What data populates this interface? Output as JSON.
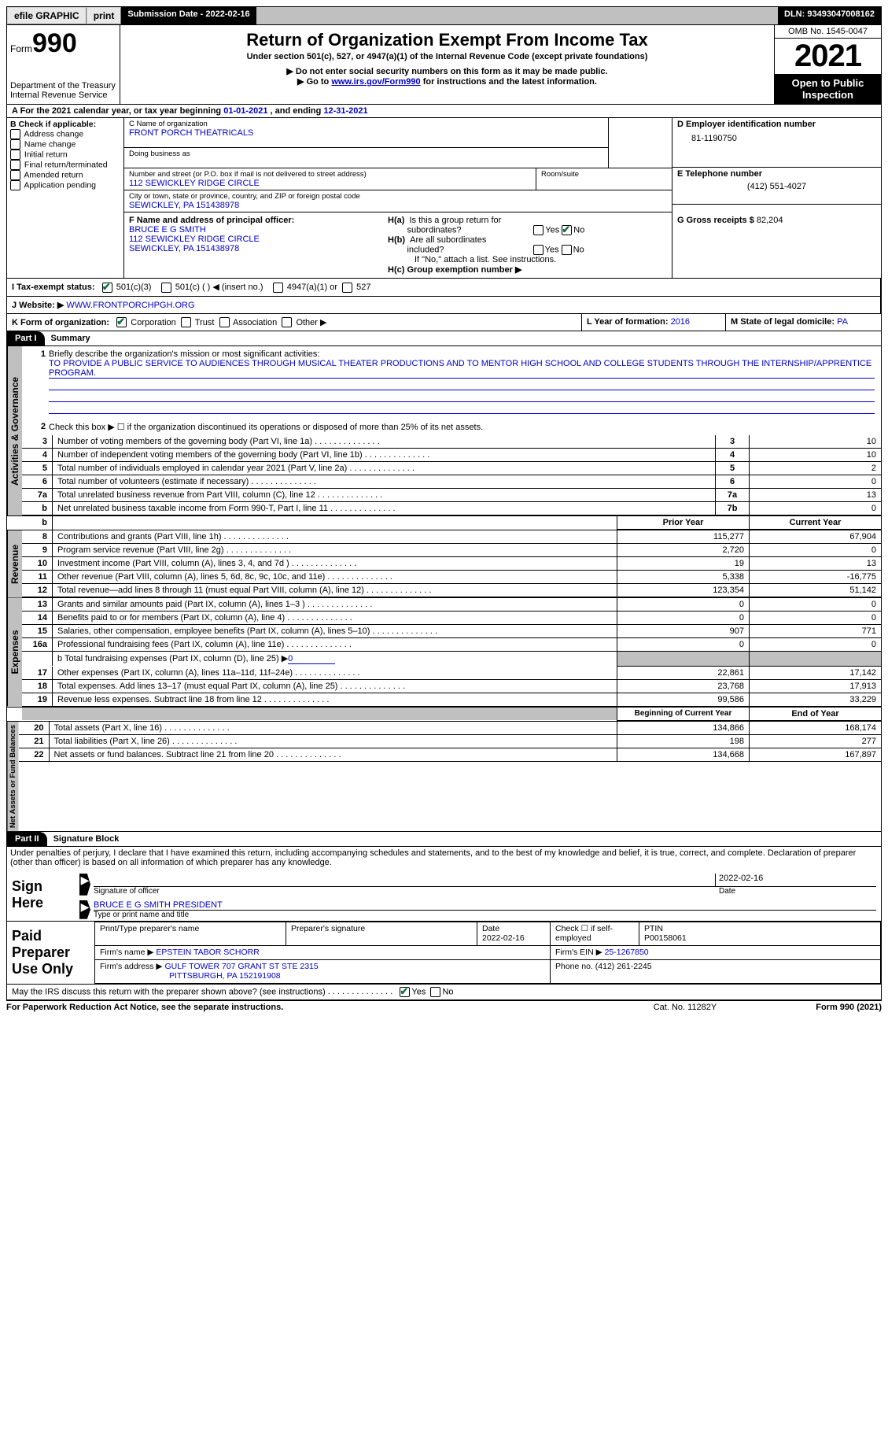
{
  "topbar": {
    "efile": "efile GRAPHIC",
    "print": "print",
    "sub_label": "Submission Date - ",
    "sub_date": "2022-02-16",
    "dln_label": "DLN: ",
    "dln": "93493047008162"
  },
  "header": {
    "form_word": "Form",
    "form_num": "990",
    "dept": "Department of the Treasury",
    "irs": "Internal Revenue Service",
    "title": "Return of Organization Exempt From Income Tax",
    "subtitle": "Under section 501(c), 527, or 4947(a)(1) of the Internal Revenue Code (except private foundations)",
    "note1": "▶ Do not enter social security numbers on this form as it may be made public.",
    "note2_pre": "▶ Go to ",
    "note2_link": "www.irs.gov/Form990",
    "note2_post": " for instructions and the latest information.",
    "omb": "OMB No. 1545-0047",
    "year": "2021",
    "open": "Open to Public Inspection"
  },
  "rowA": {
    "text_pre": "A For the 2021 calendar year, or tax year beginning ",
    "begin": "01-01-2021",
    "mid": "  , and ending ",
    "end": "12-31-2021"
  },
  "colB": {
    "hdr": "B Check if applicable:",
    "opts": [
      "Address change",
      "Name change",
      "Initial return",
      "Final return/terminated",
      "Amended return",
      "Application pending"
    ]
  },
  "colC": {
    "name_lbl": "C Name of organization",
    "name": "FRONT PORCH THEATRICALS",
    "dba_lbl": "Doing business as",
    "street_lbl": "Number and street (or P.O. box if mail is not delivered to street address)",
    "room_lbl": "Room/suite",
    "street": "112 SEWICKLEY RIDGE CIRCLE",
    "city_lbl": "City or town, state or province, country, and ZIP or foreign postal code",
    "city": "SEWICKLEY, PA  151438978",
    "f_lbl": "F Name and address of principal officer:",
    "f_name": "BRUCE E G SMITH",
    "f_street": "112 SEWICKLEY RIDGE CIRCLE",
    "f_city": "SEWICKLEY, PA  151438978"
  },
  "colD": {
    "ein_lbl": "D Employer identification number",
    "ein": "81-1190750",
    "tel_lbl": "E Telephone number",
    "tel": "(412) 551-4027",
    "gross_lbl": "G Gross receipts $ ",
    "gross": "82,204"
  },
  "colH": {
    "a": "H(a)  Is this a group return for subordinates?",
    "b": "H(b)  Are all subordinates included?",
    "b_note": "If \"No,\" attach a list. See instructions.",
    "c": "H(c)  Group exemption number ▶",
    "yes": "Yes",
    "no": "No"
  },
  "rowI": {
    "lbl": "I   Tax-exempt status:",
    "o1": "501(c)(3)",
    "o2": "501(c) (  ) ◀ (insert no.)",
    "o3": "4947(a)(1) or",
    "o4": "527"
  },
  "rowJ": {
    "lbl": "J   Website: ▶ ",
    "val": "WWW.FRONTPORCHPGH.ORG"
  },
  "rowK": {
    "lbl": "K Form of organization:",
    "o1": "Corporation",
    "o2": "Trust",
    "o3": "Association",
    "o4": "Other ▶",
    "l_lbl": "L Year of formation: ",
    "l_val": "2016",
    "m_lbl": "M State of legal domicile: ",
    "m_val": "PA"
  },
  "part1": {
    "hdr": "Part I",
    "title": "Summary",
    "q1": "Briefly describe the organization's mission or most significant activities:",
    "mission": "TO PROVIDE A PUBLIC SERVICE TO AUDIENCES THROUGH MUSICAL THEATER PRODUCTIONS AND TO MENTOR HIGH SCHOOL AND COLLEGE STUDENTS THROUGH THE INTERNSHIP/APPRENTICE PROGRAM.",
    "q2": "Check this box ▶ ☐  if the organization discontinued its operations or disposed of more than 25% of its net assets.",
    "lines_top": [
      {
        "n": "3",
        "t": "Number of voting members of the governing body (Part VI, line 1a)",
        "b": "3",
        "v": "10"
      },
      {
        "n": "4",
        "t": "Number of independent voting members of the governing body (Part VI, line 1b)",
        "b": "4",
        "v": "10"
      },
      {
        "n": "5",
        "t": "Total number of individuals employed in calendar year 2021 (Part V, line 2a)",
        "b": "5",
        "v": "2"
      },
      {
        "n": "6",
        "t": "Total number of volunteers (estimate if necessary)",
        "b": "6",
        "v": "0"
      },
      {
        "n": "7a",
        "t": "Total unrelated business revenue from Part VIII, column (C), line 12",
        "b": "7a",
        "v": "13"
      },
      {
        "n": "b",
        "t": "Net unrelated business taxable income from Form 990-T, Part I, line 11",
        "b": "7b",
        "v": "0"
      }
    ],
    "prior": "Prior Year",
    "current": "Current Year",
    "vtab_ag": "Activities & Governance",
    "vtab_rev": "Revenue",
    "vtab_exp": "Expenses",
    "vtab_na": "Net Assets or Fund Balances",
    "rev": [
      {
        "n": "8",
        "t": "Contributions and grants (Part VIII, line 1h)",
        "p": "115,277",
        "c": "67,904"
      },
      {
        "n": "9",
        "t": "Program service revenue (Part VIII, line 2g)",
        "p": "2,720",
        "c": "0"
      },
      {
        "n": "10",
        "t": "Investment income (Part VIII, column (A), lines 3, 4, and 7d )",
        "p": "19",
        "c": "13"
      },
      {
        "n": "11",
        "t": "Other revenue (Part VIII, column (A), lines 5, 6d, 8c, 9c, 10c, and 11e)",
        "p": "5,338",
        "c": "-16,775"
      },
      {
        "n": "12",
        "t": "Total revenue—add lines 8 through 11 (must equal Part VIII, column (A), line 12)",
        "p": "123,354",
        "c": "51,142"
      }
    ],
    "exp": [
      {
        "n": "13",
        "t": "Grants and similar amounts paid (Part IX, column (A), lines 1–3 )",
        "p": "0",
        "c": "0"
      },
      {
        "n": "14",
        "t": "Benefits paid to or for members (Part IX, column (A), line 4)",
        "p": "0",
        "c": "0"
      },
      {
        "n": "15",
        "t": "Salaries, other compensation, employee benefits (Part IX, column (A), lines 5–10)",
        "p": "907",
        "c": "771"
      },
      {
        "n": "16a",
        "t": "Professional fundraising fees (Part IX, column (A), line 11e)",
        "p": "0",
        "c": "0"
      }
    ],
    "exp_b_pre": "b  Total fundraising expenses (Part IX, column (D), line 25) ▶",
    "exp_b_val": "0",
    "exp2": [
      {
        "n": "17",
        "t": "Other expenses (Part IX, column (A), lines 11a–11d, 11f–24e)",
        "p": "22,861",
        "c": "17,142"
      },
      {
        "n": "18",
        "t": "Total expenses. Add lines 13–17 (must equal Part IX, column (A), line 25)",
        "p": "23,768",
        "c": "17,913"
      },
      {
        "n": "19",
        "t": "Revenue less expenses. Subtract line 18 from line 12",
        "p": "99,586",
        "c": "33,229"
      }
    ],
    "bego": "Beginning of Current Year",
    "endo": "End of Year",
    "na": [
      {
        "n": "20",
        "t": "Total assets (Part X, line 16)",
        "p": "134,866",
        "c": "168,174"
      },
      {
        "n": "21",
        "t": "Total liabilities (Part X, line 26)",
        "p": "198",
        "c": "277"
      },
      {
        "n": "22",
        "t": "Net assets or fund balances. Subtract line 21 from line 20",
        "p": "134,668",
        "c": "167,897"
      }
    ]
  },
  "part2": {
    "hdr": "Part II",
    "title": "Signature Block",
    "decl": "Under penalties of perjury, I declare that I have examined this return, including accompanying schedules and statements, and to the best of my knowledge and belief, it is true, correct, and complete. Declaration of preparer (other than officer) is based on all information of which preparer has any knowledge.",
    "sign_here": "Sign Here",
    "sig_of": "Signature of officer",
    "date_lbl": "Date",
    "sig_date": "2022-02-16",
    "name_title": "BRUCE E G SMITH  PRESIDENT",
    "type_name": "Type or print name and title",
    "paid": "Paid Preparer Use Only",
    "pp_name_lbl": "Print/Type preparer's name",
    "pp_sig_lbl": "Preparer's signature",
    "pp_date_lbl": "Date",
    "pp_date": "2022-02-16",
    "pp_check": "Check ☐ if self-employed",
    "ptin_lbl": "PTIN",
    "ptin": "P00158061",
    "firm_name_lbl": "Firm's name    ▶ ",
    "firm_name": "EPSTEIN TABOR SCHORR",
    "firm_ein_lbl": "Firm's EIN ▶ ",
    "firm_ein": "25-1267850",
    "firm_addr_lbl": "Firm's address ▶ ",
    "firm_addr1": "GULF TOWER 707 GRANT ST STE 2315",
    "firm_addr2": "PITTSBURGH, PA  152191908",
    "phone_lbl": "Phone no. ",
    "phone": "(412) 261-2245",
    "discuss": "May the IRS discuss this return with the preparer shown above? (see instructions)"
  },
  "footer": {
    "l": "For Paperwork Reduction Act Notice, see the separate instructions.",
    "m": "Cat. No. 11282Y",
    "r": "Form 990 (2021)"
  }
}
